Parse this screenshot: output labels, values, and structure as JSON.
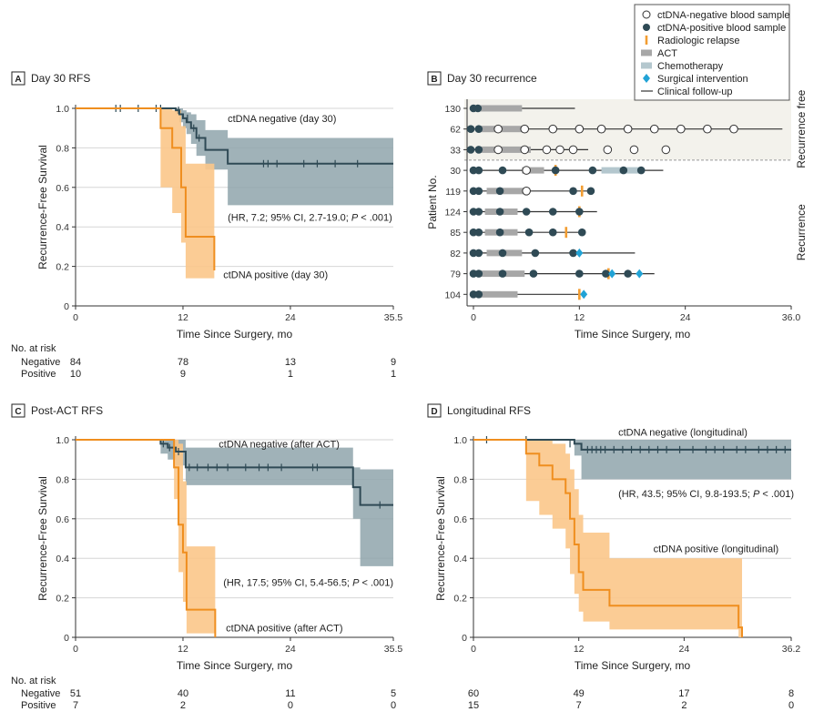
{
  "colors": {
    "negative": "#2f4a55",
    "negative_band": "#8fa5ac",
    "positive": "#ef8e1f",
    "positive_band": "#fbc68a",
    "act": "#a7a7a7",
    "chemo": "#b4c7ce",
    "surgery": "#21a3d6",
    "relapse": "#f29d32",
    "grid": "#d6d6d6",
    "free_region": "#f3f2ec"
  },
  "legend": {
    "items": [
      {
        "key": "neg",
        "label": "ctDNA-negative blood sample"
      },
      {
        "key": "pos",
        "label": "ctDNA-positive blood sample"
      },
      {
        "key": "relapse",
        "label": "Radiologic relapse"
      },
      {
        "key": "act",
        "label": "ACT"
      },
      {
        "key": "chemo",
        "label": "Chemotherapy"
      },
      {
        "key": "surgery",
        "label": "Surgical intervention"
      },
      {
        "key": "followup",
        "label": "Clinical follow-up"
      }
    ]
  },
  "chart_data": [
    {
      "type": "line",
      "panel": "A",
      "title": "Day 30 RFS",
      "xlabel": "Time Since Surgery, mo",
      "ylabel": "Recurrence-Free Survival",
      "xlim": [
        0,
        35.5
      ],
      "ylim": [
        0,
        1.0
      ],
      "xticks": [
        "0",
        "12",
        "24",
        "35.5"
      ],
      "yticks": [
        "0",
        "0.2",
        "0.4",
        "0.6",
        "0.8",
        "1.0"
      ],
      "series": [
        {
          "name": "ctDNA negative (day 30)",
          "group": "neg",
          "x": [
            0,
            11.2,
            11.6,
            12.0,
            12.4,
            12.9,
            13.5,
            14.5,
            17,
            35.5
          ],
          "y": [
            1.0,
            0.99,
            0.97,
            0.95,
            0.93,
            0.9,
            0.85,
            0.79,
            0.72,
            0.72
          ],
          "lower": [
            1.0,
            0.97,
            0.93,
            0.9,
            0.87,
            0.82,
            0.76,
            0.69,
            0.51,
            0.51
          ],
          "upper": [
            1.0,
            1.0,
            1.0,
            0.99,
            0.98,
            0.97,
            0.94,
            0.89,
            0.85,
            0.85
          ],
          "censor": [
            4.5,
            5,
            7,
            9,
            9.5,
            11.5,
            12.5,
            13.2,
            13.8,
            21,
            21.5,
            22.5,
            25.5,
            27,
            29,
            31.5
          ],
          "censor_y": [
            1.0,
            1.0,
            1.0,
            1.0,
            1.0,
            0.99,
            0.95,
            0.9,
            0.85,
            0.72,
            0.72,
            0.72,
            0.72,
            0.72,
            0.72,
            0.72
          ]
        },
        {
          "name": "ctDNA positive (day 30)",
          "group": "pos",
          "x": [
            0,
            9.5,
            10.8,
            11.8,
            12.3,
            15.5
          ],
          "y": [
            1.0,
            0.9,
            0.8,
            0.6,
            0.35,
            0.18
          ],
          "lower": [
            1.0,
            0.6,
            0.47,
            0.32,
            0.14,
            0.09
          ],
          "upper": [
            1.0,
            1.0,
            0.99,
            0.91,
            0.72,
            0.64
          ],
          "censor": [],
          "censor_y": []
        }
      ],
      "annotations": [
        {
          "text": "ctDNA negative (day 30)",
          "x": 17,
          "y": 0.93
        },
        {
          "text": "(HR, 7.2; 95% CI, 2.7-19.0; ",
          "ptext": "P",
          "tail": " < .001)",
          "x": 17,
          "y": 0.43
        },
        {
          "text": "ctDNA positive (day 30)",
          "x": 16.5,
          "y": 0.14
        }
      ],
      "risk_header": "No. at risk",
      "risk_table": [
        {
          "name": "Negative",
          "values": [
            "84",
            "78",
            "13",
            "9"
          ]
        },
        {
          "name": "Positive",
          "values": [
            "10",
            "9",
            "1",
            "1"
          ]
        }
      ]
    },
    {
      "type": "timeline",
      "panel": "B",
      "title": "Day 30 recurrence",
      "xlabel": "Time Since Surgery, mo",
      "ylabel": "Patient No.",
      "xlim": [
        0,
        36
      ],
      "xticks": [
        "0",
        "12",
        "24",
        "36.0"
      ],
      "group_labels": [
        "Recurrence free",
        "Recurrence"
      ],
      "patients": [
        {
          "id": "130",
          "group": "free",
          "follow": [
            0,
            11.5
          ],
          "act": [
            0,
            5.5
          ],
          "chemo": null,
          "pos": [
            0,
            0.5
          ],
          "neg": [],
          "relapse": [],
          "surgery": []
        },
        {
          "id": "62",
          "group": "free",
          "follow": [
            -0.3,
            35
          ],
          "act": [
            0.3,
            5.5
          ],
          "chemo": null,
          "pos": [
            -0.3,
            0.6
          ],
          "neg": [
            2.8,
            5.8,
            9.0,
            12.0,
            14.5,
            17.5,
            20.5,
            23.5,
            26.5,
            29.5
          ],
          "relapse": [],
          "surgery": []
        },
        {
          "id": "33",
          "group": "free",
          "follow": [
            -0.3,
            13
          ],
          "act": [
            0.3,
            6.5
          ],
          "chemo": null,
          "pos": [
            -0.3,
            0.6
          ],
          "neg": [
            2.8,
            5.8,
            8.3,
            9.8,
            11.3,
            15.2,
            18.2,
            21.8
          ],
          "relapse": [],
          "surgery": []
        },
        {
          "id": "30",
          "group": "rec",
          "follow": [
            0,
            21.5
          ],
          "act": [
            5.5,
            8
          ],
          "chemo": [
            14.5,
            19
          ],
          "pos": [
            0,
            0.6,
            3.3,
            9.3,
            13.5,
            17.0,
            19.0
          ],
          "neg": [
            6.0
          ],
          "relapse": [
            9.3
          ],
          "surgery": []
        },
        {
          "id": "119",
          "group": "rec",
          "follow": [
            0,
            13.5
          ],
          "act": [
            1.5,
            6.0
          ],
          "chemo": null,
          "pos": [
            0,
            0.6,
            3.0,
            11.3,
            13.3
          ],
          "neg": [
            6.0
          ],
          "relapse": [
            12.3
          ],
          "surgery": []
        },
        {
          "id": "124",
          "group": "rec",
          "follow": [
            0,
            14.0
          ],
          "act": [
            1.3,
            5.0
          ],
          "chemo": null,
          "pos": [
            0,
            0.6,
            3.0,
            6.0,
            9.0,
            12.0
          ],
          "neg": [],
          "relapse": [
            12.0
          ],
          "surgery": []
        },
        {
          "id": "85",
          "group": "rec",
          "follow": [
            0,
            12.5
          ],
          "act": [
            1.3,
            5.0
          ],
          "chemo": null,
          "pos": [
            0,
            0.6,
            3.0,
            6.3,
            9.0,
            12.3
          ],
          "neg": [],
          "relapse": [
            10.5
          ],
          "surgery": []
        },
        {
          "id": "82",
          "group": "rec",
          "follow": [
            0,
            18.3
          ],
          "act": [
            1.5,
            5.5
          ],
          "chemo": null,
          "pos": [
            0,
            0.6,
            3.3,
            7.0,
            11.3
          ],
          "neg": [],
          "relapse": [],
          "surgery": [
            12.0
          ]
        },
        {
          "id": "79",
          "group": "rec",
          "follow": [
            0,
            20.5
          ],
          "act": [
            0.8,
            5.8
          ],
          "chemo": null,
          "pos": [
            0,
            0.6,
            3.3,
            6.8,
            12.0,
            15.0,
            17.5
          ],
          "neg": [],
          "relapse": [
            15.3
          ],
          "surgery": [
            15.7,
            18.8
          ]
        },
        {
          "id": "104",
          "group": "rec",
          "follow": [
            0,
            12.8
          ],
          "act": [
            0.8,
            5.0
          ],
          "chemo": null,
          "pos": [
            0,
            0.6
          ],
          "neg": [],
          "relapse": [
            12.0
          ],
          "surgery": [
            12.5
          ]
        }
      ]
    },
    {
      "type": "line",
      "panel": "C",
      "title": "Post-ACT RFS",
      "xlabel": "Time Since Surgery, mo",
      "ylabel": "Recurrence-Free Survival",
      "xlim": [
        0,
        35.5
      ],
      "ylim": [
        0,
        1.0
      ],
      "xticks": [
        "0",
        "12",
        "24",
        "35.5"
      ],
      "yticks": [
        "0",
        "0.2",
        "0.4",
        "0.6",
        "0.8",
        "1.0"
      ],
      "series": [
        {
          "name": "ctDNA negative (after ACT)",
          "group": "neg",
          "x": [
            0,
            9.5,
            10.3,
            11.2,
            12.3,
            31,
            31.8,
            35.5
          ],
          "y": [
            1.0,
            0.98,
            0.96,
            0.94,
            0.86,
            0.76,
            0.67,
            0.67
          ],
          "lower": [
            1.0,
            0.93,
            0.9,
            0.87,
            0.77,
            0.6,
            0.36,
            0.36
          ],
          "upper": [
            1.0,
            1.0,
            1.0,
            1.0,
            0.96,
            0.86,
            0.85,
            0.85
          ],
          "censor": [
            9.8,
            10.5,
            11.5,
            12.7,
            13.6,
            14.8,
            15.8,
            17,
            19,
            20.5,
            21.5,
            23,
            26.5,
            27,
            34
          ],
          "censor_y": [
            0.98,
            0.96,
            0.94,
            0.86,
            0.86,
            0.86,
            0.86,
            0.86,
            0.86,
            0.86,
            0.86,
            0.86,
            0.86,
            0.86,
            0.67
          ]
        },
        {
          "name": "ctDNA positive (after ACT)",
          "group": "pos",
          "x": [
            0,
            11.0,
            11.5,
            12.0,
            12.4,
            15.6
          ],
          "y": [
            1.0,
            0.86,
            0.57,
            0.43,
            0.14,
            0.0
          ],
          "lower": [
            1.0,
            0.7,
            0.33,
            0.18,
            0.02,
            0.0
          ],
          "upper": [
            1.0,
            1.0,
            0.98,
            0.79,
            0.46,
            0.46
          ],
          "censor": [],
          "censor_y": []
        }
      ],
      "annotations": [
        {
          "text": "ctDNA negative (after ACT)",
          "x": 16,
          "y": 0.96
        },
        {
          "text": "(HR, 17.5; 95% CI, 5.4-56.5; ",
          "ptext": "P",
          "tail": " < .001)",
          "x": 16.5,
          "y": 0.26
        },
        {
          "text": "ctDNA positive (after ACT)",
          "x": 16.8,
          "y": 0.03
        }
      ],
      "risk_header": "No. at risk",
      "risk_table": [
        {
          "name": "Negative",
          "values": [
            "51",
            "40",
            "11",
            "5"
          ]
        },
        {
          "name": "Positive",
          "values": [
            "7",
            "2",
            "0",
            "0"
          ]
        }
      ]
    },
    {
      "type": "line",
      "panel": "D",
      "title": "Longitudinal RFS",
      "xlabel": "Time Since Surgery, mo",
      "ylabel": "Recurrence-Free Survival",
      "xlim": [
        0,
        36.2
      ],
      "ylim": [
        0,
        1.0
      ],
      "xticks": [
        "0",
        "12",
        "24",
        "36.2"
      ],
      "yticks": [
        "0",
        "0.2",
        "0.4",
        "0.6",
        "0.8",
        "1.0"
      ],
      "series": [
        {
          "name": "ctDNA negative (longitudinal)",
          "group": "neg",
          "x": [
            0,
            11.5,
            12.3,
            36.2
          ],
          "y": [
            1.0,
            0.98,
            0.95,
            0.95
          ],
          "lower": [
            1.0,
            0.92,
            0.8,
            0.8
          ],
          "upper": [
            1.0,
            1.0,
            1.0,
            1.0
          ],
          "censor": [
            1.5,
            6,
            11,
            13,
            13.5,
            14,
            14.5,
            15,
            16,
            17,
            18,
            19,
            20,
            21,
            22,
            23.5,
            25,
            26.5,
            27.5,
            28.5,
            30,
            31,
            32.5,
            33.5,
            34.5,
            35.5
          ],
          "censor_y": [
            1.0,
            1.0,
            0.98,
            0.95,
            0.95,
            0.95,
            0.95,
            0.95,
            0.95,
            0.95,
            0.95,
            0.95,
            0.95,
            0.95,
            0.95,
            0.95,
            0.95,
            0.95,
            0.95,
            0.95,
            0.95,
            0.95,
            0.95,
            0.95,
            0.95,
            0.95
          ]
        },
        {
          "name": "ctDNA positive (longitudinal)",
          "group": "pos",
          "x": [
            0,
            6,
            7.5,
            9,
            10.5,
            11.0,
            11.5,
            12.0,
            12.5,
            15.5,
            30.2,
            30.6
          ],
          "y": [
            1.0,
            0.93,
            0.87,
            0.8,
            0.73,
            0.6,
            0.47,
            0.33,
            0.24,
            0.16,
            0.05,
            0.0
          ],
          "lower": [
            1.0,
            0.69,
            0.62,
            0.55,
            0.45,
            0.32,
            0.22,
            0.13,
            0.08,
            0.04,
            0.0,
            0.0
          ],
          "upper": [
            1.0,
            1.0,
            1.0,
            0.98,
            0.93,
            0.85,
            0.75,
            0.62,
            0.53,
            0.4,
            0.4,
            0.4
          ],
          "censor": [],
          "censor_y": []
        }
      ],
      "annotations": [
        {
          "text": "ctDNA negative (longitudinal)",
          "x": 16.5,
          "y": 1.02
        },
        {
          "text": "(HR, 43.5; 95% CI, 9.8-193.5; ",
          "ptext": "P",
          "tail": " < .001)",
          "x": 16.5,
          "y": 0.71
        },
        {
          "text": "ctDNA positive (longitudinal)",
          "x": 20.5,
          "y": 0.43
        }
      ],
      "risk_header": "",
      "risk_table": [
        {
          "name": "",
          "values": [
            "60",
            "49",
            "17",
            "8"
          ]
        },
        {
          "name": "",
          "values": [
            "15",
            "7",
            "2",
            "0"
          ]
        }
      ]
    }
  ]
}
